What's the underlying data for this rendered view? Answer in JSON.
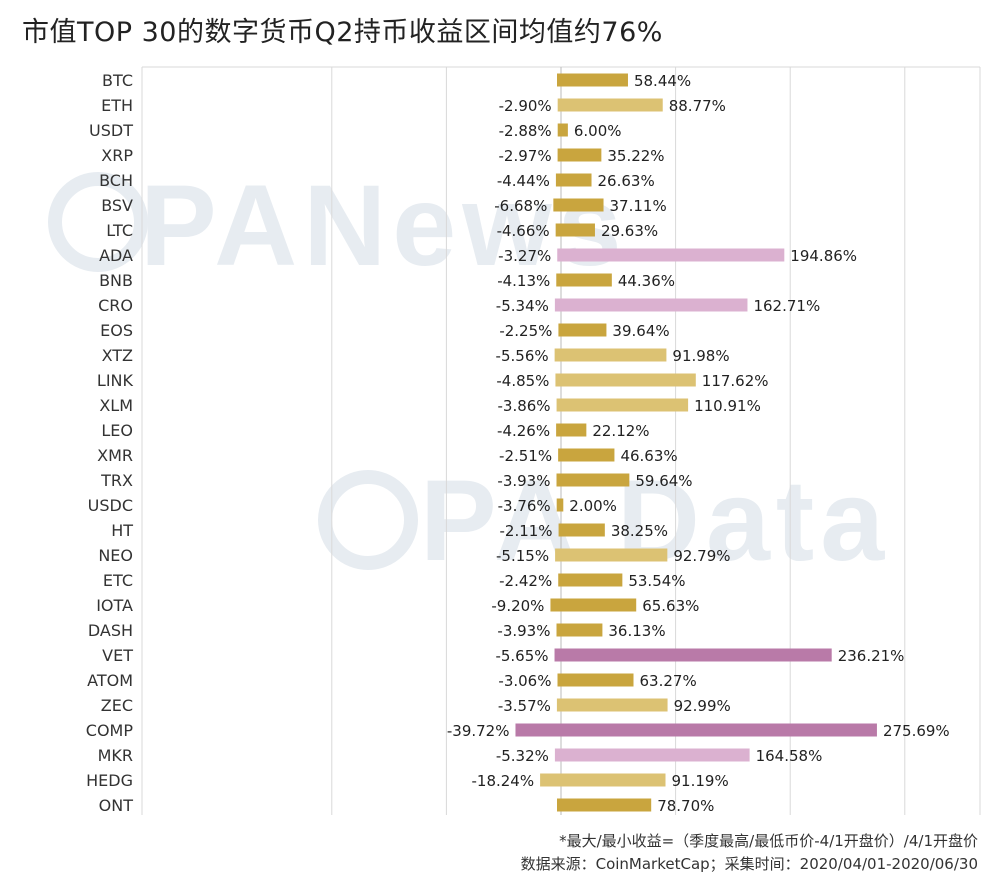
{
  "header": {
    "title": "市值TOP 30的数字货币Q2持币收益区间均值约76%"
  },
  "watermarks": [
    "PANews",
    "PA Data"
  ],
  "footer": {
    "note": "*最大/最小收益=（季度最高/最低币价-4/1开盘价）/4/1开盘价",
    "source": "数据来源：CoinMarketCap；采集时间：2020/04/01-2020/06/30"
  },
  "colors": {
    "gold": "#c9a53e",
    "gold_light": "#dcc273",
    "pink": "#dbb1d0",
    "magenta": "#b97aa8",
    "grid": "#d9d9d9",
    "zero_line": "#bbbbbb"
  },
  "chart_data": {
    "type": "bar",
    "orientation": "horizontal",
    "title": "市值TOP 30的数字货币Q2持币收益区间均值约76%",
    "unit": "%",
    "xlim": [
      -230,
      360
    ],
    "grid_values": [
      -200,
      -100,
      0,
      100,
      200,
      300
    ],
    "categories": [
      "BTC",
      "ETH",
      "USDT",
      "XRP",
      "BCH",
      "BSV",
      "LTC",
      "ADA",
      "BNB",
      "CRO",
      "EOS",
      "XTZ",
      "LINK",
      "XLM",
      "LEO",
      "XMR",
      "TRX",
      "USDC",
      "HT",
      "NEO",
      "ETC",
      "IOTA",
      "DASH",
      "VET",
      "ATOM",
      "ZEC",
      "COMP",
      "MKR",
      "HEDG",
      "ONT"
    ],
    "series": [
      {
        "name": "最小收益",
        "values": [
          null,
          -2.9,
          -2.88,
          -2.97,
          -4.44,
          -6.68,
          -4.66,
          -3.27,
          -4.13,
          -5.34,
          -2.25,
          -5.56,
          -4.85,
          -3.86,
          -4.26,
          -2.51,
          -3.93,
          -3.76,
          -2.11,
          -5.15,
          -2.42,
          -9.2,
          -3.93,
          -5.65,
          -3.06,
          -3.57,
          -39.72,
          -5.32,
          -18.24,
          null
        ],
        "labels": [
          "",
          "-2.90%",
          "-2.88%",
          "-2.97%",
          "-4.44%",
          "-6.68%",
          "-4.66%",
          "-3.27%",
          "-4.13%",
          "-5.34%",
          "-2.25%",
          "-5.56%",
          "-4.85%",
          "-3.86%",
          "-4.26%",
          "-2.51%",
          "-3.93%",
          "-3.76%",
          "-2.11%",
          "-5.15%",
          "-2.42%",
          "-9.20%",
          "-3.93%",
          "-5.65%",
          "-3.06%",
          "-3.57%",
          "-39.72%",
          "-5.32%",
          "-18.24%",
          ""
        ]
      },
      {
        "name": "最大收益",
        "values": [
          58.44,
          88.77,
          6.0,
          35.22,
          26.63,
          37.11,
          29.63,
          194.86,
          44.36,
          162.71,
          39.64,
          91.98,
          117.62,
          110.91,
          22.12,
          46.63,
          59.64,
          2.0,
          38.25,
          92.79,
          53.54,
          65.63,
          36.13,
          236.21,
          63.27,
          92.99,
          275.69,
          164.58,
          91.19,
          78.7
        ],
        "labels": [
          "58.44%",
          "88.77%",
          "6.00%",
          "35.22%",
          "26.63%",
          "37.11%",
          "29.63%",
          "194.86%",
          "44.36%",
          "162.71%",
          "39.64%",
          "91.98%",
          "117.62%",
          "110.91%",
          "22.12%",
          "46.63%",
          "59.64%",
          "2.00%",
          "38.25%",
          "92.79%",
          "53.54%",
          "65.63%",
          "36.13%",
          "236.21%",
          "63.27%",
          "92.99%",
          "275.69%",
          "164.58%",
          "91.19%",
          "78.70%"
        ]
      }
    ]
  }
}
